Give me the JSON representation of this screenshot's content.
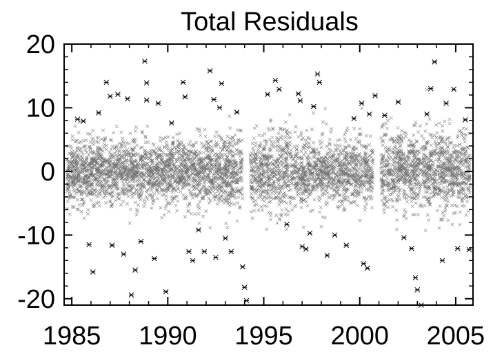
{
  "chart_data": {
    "type": "scatter",
    "title": "Total Residuals",
    "xlabel": "",
    "ylabel": "",
    "xlim": [
      1984.6,
      2005.9
    ],
    "ylim": [
      -21,
      20
    ],
    "x_ticks": [
      1985,
      1990,
      1995,
      2000,
      2005
    ],
    "y_ticks": [
      -20,
      -10,
      0,
      10,
      20
    ],
    "marker": "x",
    "point_color": "#000000",
    "grid": false,
    "legend": "none",
    "note_gaps": [
      [
        1993.9,
        1994.3
      ],
      [
        2000.7,
        2001.1
      ]
    ],
    "series": [
      {
        "values_outliers": [
          [
            1985.3,
            8.2
          ],
          [
            1985.6,
            7.9
          ],
          [
            1985.9,
            -11.5
          ],
          [
            1986.1,
            -15.8
          ],
          [
            1986.4,
            9.2
          ],
          [
            1986.8,
            14.0
          ],
          [
            1987.0,
            11.8
          ],
          [
            1987.1,
            -11.6
          ],
          [
            1987.4,
            12.1
          ],
          [
            1987.7,
            -13.0
          ],
          [
            1987.9,
            11.4
          ],
          [
            1988.1,
            -19.4
          ],
          [
            1988.3,
            -15.5
          ],
          [
            1988.6,
            -11.0
          ],
          [
            1988.8,
            17.3
          ],
          [
            1988.9,
            13.9
          ],
          [
            1988.9,
            11.2
          ],
          [
            1989.3,
            -13.7
          ],
          [
            1989.5,
            10.7
          ],
          [
            1989.9,
            -18.9
          ],
          [
            1990.2,
            7.6
          ],
          [
            1990.8,
            14.0
          ],
          [
            1990.9,
            11.7
          ],
          [
            1991.1,
            -12.6
          ],
          [
            1991.3,
            -14.0
          ],
          [
            1991.6,
            -9.2
          ],
          [
            1991.9,
            -12.6
          ],
          [
            1992.2,
            15.8
          ],
          [
            1992.4,
            11.3
          ],
          [
            1992.5,
            -13.5
          ],
          [
            1992.7,
            10.0
          ],
          [
            1992.8,
            13.8
          ],
          [
            1993.0,
            -10.5
          ],
          [
            1993.3,
            -12.6
          ],
          [
            1993.6,
            9.3
          ],
          [
            1993.9,
            -15.0
          ],
          [
            1994.0,
            -18.2
          ],
          [
            1994.1,
            -20.3
          ],
          [
            1995.2,
            12.1
          ],
          [
            1995.6,
            14.3
          ],
          [
            1995.8,
            12.9
          ],
          [
            1996.2,
            -8.3
          ],
          [
            1996.8,
            12.2
          ],
          [
            1996.9,
            11.1
          ],
          [
            1997.0,
            -11.8
          ],
          [
            1997.2,
            -12.2
          ],
          [
            1997.4,
            -9.7
          ],
          [
            1997.6,
            10.2
          ],
          [
            1997.8,
            15.3
          ],
          [
            1997.9,
            14.0
          ],
          [
            1998.3,
            -13.2
          ],
          [
            1998.7,
            -10.0
          ],
          [
            1999.3,
            -11.6
          ],
          [
            1999.7,
            8.3
          ],
          [
            2000.1,
            10.7
          ],
          [
            2000.2,
            -14.5
          ],
          [
            2000.4,
            -15.2
          ],
          [
            2000.5,
            9.0
          ],
          [
            2000.8,
            11.9
          ],
          [
            2001.3,
            8.8
          ],
          [
            2002.0,
            10.9
          ],
          [
            2002.3,
            -10.4
          ],
          [
            2002.7,
            -12.1
          ],
          [
            2002.9,
            -16.7
          ],
          [
            2003.0,
            -18.6
          ],
          [
            2003.2,
            -21.0
          ],
          [
            2003.5,
            9.0
          ],
          [
            2003.7,
            13.0
          ],
          [
            2003.9,
            17.2
          ],
          [
            2004.3,
            -14.0
          ],
          [
            2004.5,
            10.7
          ],
          [
            2004.9,
            12.9
          ],
          [
            2005.1,
            -12.1
          ],
          [
            2005.5,
            8.1
          ],
          [
            2005.7,
            -12.3
          ]
        ]
      }
    ]
  }
}
